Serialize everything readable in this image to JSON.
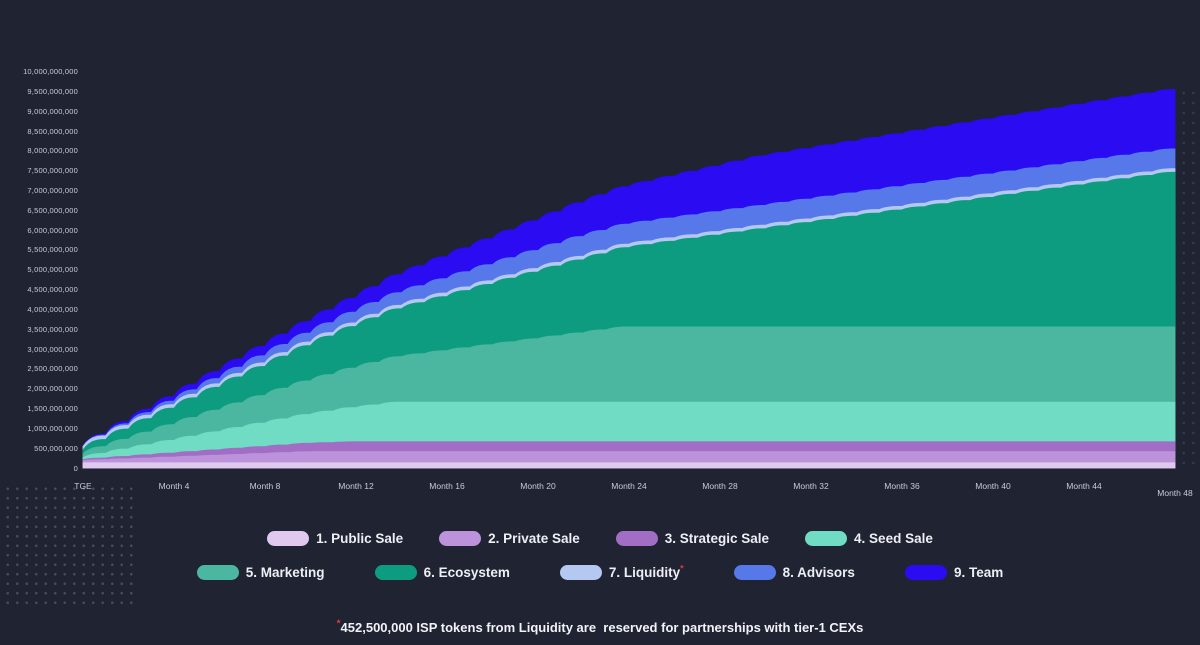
{
  "page": {
    "background": "#1F2332"
  },
  "chart_data": {
    "type": "area",
    "stacked": true,
    "title": "",
    "subtitle": "",
    "unit": "ISP tokens",
    "values_unit": "millions of tokens",
    "legend_position": "bottom",
    "grid": false,
    "x_axis": {
      "tick_months": [
        0,
        4,
        8,
        12,
        16,
        20,
        24,
        28,
        32,
        36,
        40,
        44,
        48
      ],
      "tick_labels": [
        "TGE",
        "Month 4",
        "Month 8",
        "Month 12",
        "Month 16",
        "Month 20",
        "Month 24",
        "Month 28",
        "Month 32",
        "Month 36",
        "Month 40",
        "Month 44",
        "Month 48"
      ],
      "range_months": [
        0,
        48
      ]
    },
    "y_axis": {
      "min": 0,
      "max": 10000000000,
      "step": 500000000,
      "tick_labels": [
        "0",
        "500,000,000",
        "1,000,000,000",
        "1,500,000,000",
        "2,000,000,000",
        "2,500,000,000",
        "3,000,000,000",
        "3,500,000,000",
        "4,000,000,000",
        "4,500,000,000",
        "5,000,000,000",
        "5,500,000,000",
        "6,000,000,000",
        "6,500,000,000",
        "7,000,000,000",
        "7,500,000,000",
        "8,000,000,000",
        "8,500,000,000",
        "9,000,000,000",
        "9,500,000,000",
        "10,000,000,000"
      ]
    },
    "series": [
      {
        "label": "1. Public Sale",
        "slug": "public-sale",
        "color": "#DFC9EE",
        "asterisk": false,
        "cumulative_breakpoints_month_value_millions": [
          [
            0,
            130
          ],
          [
            48,
            130
          ]
        ]
      },
      {
        "label": "2. Private Sale",
        "slug": "private-sale",
        "color": "#BC93DB",
        "asterisk": false,
        "cumulative_breakpoints_month_value_millions": [
          [
            0,
            56
          ],
          [
            10,
            280
          ],
          [
            48,
            280
          ]
        ]
      },
      {
        "label": "3. Strategic Sale",
        "slug": "strategic-sale",
        "color": "#A16DC5",
        "asterisk": false,
        "cumulative_breakpoints_month_value_millions": [
          [
            0,
            25
          ],
          [
            12,
            250
          ],
          [
            48,
            250
          ]
        ]
      },
      {
        "label": "4. Seed Sale",
        "slug": "seed-sale",
        "color": "#6FDCC3",
        "asterisk": false,
        "cumulative_breakpoints_month_value_millions": [
          [
            0,
            50
          ],
          [
            14,
            1000
          ],
          [
            48,
            1000
          ]
        ]
      },
      {
        "label": "5. Marketing",
        "slug": "marketing",
        "color": "#4BB7A1",
        "asterisk": false,
        "cumulative_breakpoints_month_value_millions": [
          [
            0,
            95
          ],
          [
            24,
            1900
          ],
          [
            48,
            1900
          ]
        ]
      },
      {
        "label": "6. Ecosystem",
        "slug": "ecosystem",
        "color": "#0D9C80",
        "asterisk": false,
        "cumulative_breakpoints_month_value_millions": [
          [
            0,
            100
          ],
          [
            48,
            3900
          ]
        ]
      },
      {
        "label": "7. Liquidity",
        "slug": "liquidity",
        "color": "#B4C8F2",
        "asterisk": true,
        "cumulative_breakpoints_month_value_millions": [
          [
            0,
            90
          ],
          [
            48,
            90
          ]
        ]
      },
      {
        "label": "8. Advisors",
        "slug": "advisors",
        "color": "#5678E9",
        "asterisk": false,
        "cumulative_breakpoints_month_value_millions": [
          [
            0,
            0
          ],
          [
            1,
            20
          ],
          [
            22,
            500
          ],
          [
            48,
            500
          ]
        ]
      },
      {
        "label": "9. Team",
        "slug": "team",
        "color": "#2A0BF2",
        "asterisk": false,
        "cumulative_breakpoints_month_value_millions": [
          [
            0,
            0
          ],
          [
            1,
            30
          ],
          [
            12,
            354
          ],
          [
            30,
            1250
          ],
          [
            48,
            1500
          ]
        ]
      }
    ],
    "legend_rows": [
      [
        0,
        1,
        2,
        3
      ],
      [
        4,
        5,
        6,
        7,
        8
      ]
    ]
  },
  "footnote": {
    "asterisk": "*",
    "text": "452,500,000 ISP tokens from Liquidity are  reserved for partnerships with tier-1 CEXs"
  },
  "colors": {
    "background": "#1F2332",
    "axis_text": "#C7CCDA",
    "legend_text": "#EDEFF4",
    "footnote_text": "#F2F3F7",
    "asterisk_red": "#E53935"
  }
}
